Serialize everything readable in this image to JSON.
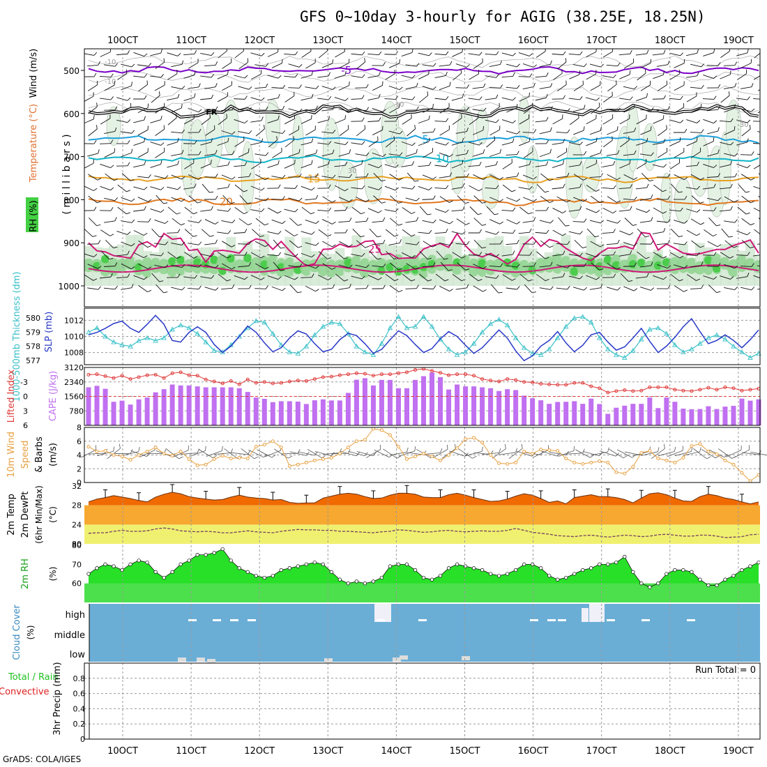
{
  "title": "GFS 0~10day 3-hourly for AGIG (38.25E, 18.25N)",
  "footer": "GrADS: COLA/IGES",
  "x_axis": {
    "labels": [
      "10OCT",
      "11OCT",
      "12OCT",
      "13OCT",
      "14OCT",
      "15OCT",
      "16OCT",
      "17OCT",
      "18OCT",
      "19OCT"
    ],
    "n_steps": 81
  },
  "colors": {
    "purple": "#7a00c8",
    "cyan": "#1ea0dc",
    "teal": "#10b4c8",
    "orange": "#e8a020",
    "dark_orange": "#e07820",
    "magenta": "#d01878",
    "slp": "#2838c8",
    "thick": "#38c0c8",
    "lifted": "#e03838",
    "cape": "#c070f0",
    "wind10": "#e8a040",
    "temp": "#f06a00",
    "temp_band": "#f6a830",
    "dew_band": "#f0f070",
    "rh": "#28e028",
    "rh_dark": "#18a018",
    "cloud_bg": "#6aaed6"
  },
  "chart_data": [
    {
      "type": "contour",
      "panel": "upper_air",
      "ylabel_parts": [
        "RH (%)",
        "Temperature (°C)",
        "Wind (m/s)"
      ],
      "ylabel_units": "( m i l l i b a r s )",
      "y_ticks": [
        500,
        600,
        700,
        800,
        900,
        1000
      ],
      "ylim": [
        1000,
        450
      ],
      "isotherms": [
        {
          "name": "-5",
          "level": 500,
          "label": "-5"
        },
        {
          "name": "0",
          "level": 595,
          "label": "FR"
        },
        {
          "name": "5",
          "level": 660,
          "label": "5"
        },
        {
          "name": "10",
          "level": 705,
          "label": "10"
        },
        {
          "name": "15",
          "level": 752,
          "label": "15"
        },
        {
          "name": "20",
          "level": 805,
          "label": "20"
        },
        {
          "name": "25",
          "level": 915,
          "label": "25"
        }
      ],
      "contour_labels": [
        "-10",
        "-10",
        "10",
        "30",
        "30"
      ]
    },
    {
      "type": "line",
      "panel": "slp_thickness",
      "ylabel_left": "1000-500mb Thickness (dm)",
      "ylabel_right": "SLP (mb)",
      "left_ticks": [
        577,
        578,
        579,
        580
      ],
      "right_ticks": [
        1008,
        1010,
        1012
      ],
      "series": [
        {
          "name": "SLP",
          "axis": "right",
          "ylim": [
            1006.5,
            1013.5
          ],
          "values": [
            1010.2,
            1010.5,
            1011,
            1011.6,
            1011.9,
            1011,
            1010.5,
            1011.5,
            1012.6,
            1011.5,
            1009.5,
            1009.3,
            1010.5,
            1011.2,
            1010.5,
            1009,
            1008,
            1008.8,
            1010,
            1011.3,
            1010.5,
            1009.2,
            1008.1,
            1008.6,
            1009.8,
            1010.7,
            1010.3,
            1009.1,
            1008.1,
            1008.4,
            1009.6,
            1010.4,
            1010.1,
            1009.1,
            1007.9,
            1008.4,
            1009.6,
            1010.7,
            1010.1,
            1009,
            1008,
            1008.5,
            1009.7,
            1010.6,
            1010,
            1008.9,
            1007.9,
            1008.6,
            1009.7,
            1010.8,
            1009.8,
            1008.2,
            1007,
            1007.6,
            1008.8,
            1009.5,
            1010.6,
            1009.2,
            1008.1,
            1008.9,
            1010.2,
            1010.5,
            1009.3,
            1008.3,
            1008.7,
            1009.8,
            1011,
            1009.4,
            1008,
            1008.8,
            1009.9,
            1011.2,
            1012.2,
            1010.6,
            1009.1,
            1009.5,
            1010.2,
            1009.5,
            1008.6,
            1009.6,
            1010.8
          ]
        },
        {
          "name": "Thickness",
          "axis": "left",
          "ylim": [
            576.7,
            580.7
          ],
          "values": [
            579,
            579.3,
            578.7,
            578.3,
            578.1,
            578,
            578.4,
            578.6,
            578.4,
            578.6,
            579.2,
            579.5,
            579.3,
            578.9,
            578.3,
            577.7,
            577.6,
            578.1,
            578.7,
            579.3,
            579.8,
            579.7,
            578.9,
            578.1,
            577.6,
            577.5,
            578,
            578.8,
            579.4,
            579.7,
            579.6,
            578.9,
            578,
            577.6,
            577.4,
            578.2,
            579.3,
            580.1,
            579.3,
            579.4,
            580.1,
            579.4,
            578.5,
            577.8,
            577.4,
            577.6,
            578.2,
            579,
            579.6,
            579.9,
            579.5,
            578.6,
            577.9,
            577.5,
            577.4,
            577.8,
            578.6,
            579.4,
            580,
            580.1,
            579.7,
            578.6,
            577.8,
            577.4,
            577.2,
            577.7,
            578.5,
            579.2,
            579.3,
            578.9,
            578.1,
            577.6,
            577.8,
            578.2,
            578.6,
            578.8,
            578.5,
            578,
            577.6,
            577.2,
            577.5
          ]
        }
      ]
    },
    {
      "type": "bar_line",
      "panel": "cape_li",
      "ylabel_left": "Lifted Index",
      "ylabel_right": "CAPE (J/kg)",
      "left_ticks": [
        -3,
        0,
        3,
        6
      ],
      "right_ticks": [
        780,
        1560,
        2340,
        3120
      ],
      "series": [
        {
          "name": "CAPE",
          "type": "bar",
          "ylim": [
            0,
            3120
          ],
          "values": [
            2050,
            2130,
            1970,
            1270,
            1330,
            1120,
            1400,
            1500,
            1780,
            1950,
            2200,
            2150,
            2150,
            2100,
            2050,
            2050,
            2050,
            2050,
            2000,
            1800,
            1500,
            1430,
            1250,
            1300,
            1300,
            1280,
            1150,
            1350,
            1400,
            1340,
            1340,
            1750,
            2460,
            2540,
            2150,
            2450,
            2450,
            2000,
            2000,
            2450,
            2650,
            2850,
            2600,
            1930,
            2200,
            2100,
            2100,
            2050,
            2000,
            1850,
            1950,
            1900,
            1600,
            1460,
            1350,
            1160,
            1260,
            1270,
            1300,
            1160,
            1440,
            1150,
            620,
            950,
            1060,
            1160,
            1160,
            1500,
            930,
            1500,
            1270,
            900,
            870,
            880,
            1030,
            880,
            1010,
            1050,
            1440,
            1330,
            1400
          ]
        },
        {
          "name": "Lifted Index",
          "type": "line",
          "ylim": [
            6,
            -6
          ],
          "values": [
            -4.5,
            -4.6,
            -4.2,
            -3.8,
            -4.3,
            -3.6,
            -4,
            -4.4,
            -4.5,
            -3.8,
            -4.8,
            -5,
            -4.4,
            -4.3,
            -3.5,
            -3.1,
            -2.7,
            -3.2,
            -2.5,
            -3.5,
            -2.8,
            -3,
            -2.7,
            -2.8,
            -3.1,
            -3.3,
            -3.2,
            -3.6,
            -4,
            -4.1,
            -4.4,
            -4.6,
            -4.8,
            -4.7,
            -4.3,
            -4.6,
            -4.6,
            -4.8,
            -5,
            -5.5,
            -5.7,
            -5.3,
            -4.9,
            -4.4,
            -4.6,
            -4.6,
            -4.3,
            -3.6,
            -3.3,
            -3.1,
            -3.6,
            -3.4,
            -3,
            -2.9,
            -2.6,
            -2.5,
            -2.4,
            -2.4,
            -2.8,
            -2.8,
            -2.1,
            -1.7,
            -0.8,
            -1.1,
            -1.3,
            -1.1,
            -1.2,
            -1.9,
            -1.9,
            -1.9,
            -1.4,
            -1.2,
            -1.1,
            -1.4,
            -1.8,
            -1.4,
            -1.9,
            -1.7,
            -1.2,
            -1.4,
            -1.6
          ]
        }
      ]
    },
    {
      "type": "line",
      "panel": "wind10m",
      "ylabel": "10m Wind Speed & Barbs (m/s)",
      "ylabel_parts": [
        "10m Wind",
        "Speed",
        "& Barbs",
        "(m/s)"
      ],
      "y_ticks": [
        0,
        2,
        4,
        6,
        8
      ],
      "ylim": [
        0,
        8
      ],
      "values": [
        5.2,
        4.5,
        4.6,
        4,
        3.8,
        3.3,
        4,
        4.5,
        5.1,
        4.2,
        3.9,
        4.5,
        3.4,
        2.5,
        2.6,
        3.4,
        3.9,
        3.5,
        3.6,
        3.5,
        5.2,
        5.5,
        6,
        5.1,
        2.4,
        2.6,
        2.9,
        3.2,
        3.4,
        3.6,
        4.2,
        5.1,
        6,
        6.2,
        7.8,
        7.6,
        6.9,
        5.2,
        3.4,
        3.8,
        4.2,
        3.8,
        3.2,
        4,
        5,
        6.3,
        6.5,
        5.8,
        4,
        2.8,
        2.7,
        2.9,
        4.5,
        4.2,
        4.8,
        4.7,
        4.6,
        3.5,
        2.9,
        2.7,
        2.9,
        3.1,
        2.9,
        1.5,
        1.3,
        2.3,
        4.3,
        4.6,
        3.5,
        3.2,
        2.9,
        3.6,
        5.3,
        5.6,
        4.5,
        4.1,
        3.2,
        2.6,
        1.4,
        0.2,
        1.1
      ]
    },
    {
      "type": "area",
      "panel": "temp2m",
      "ylabel_parts": [
        "2m Temp",
        "2m DewPt",
        "(6hr Min/Max)"
      ],
      "ylabel_units": "(°C)",
      "y_ticks": [
        80,
        24,
        28,
        32
      ],
      "ylim": [
        20,
        32
      ],
      "series": [
        {
          "name": "2m Temp",
          "values": [
            28.7,
            29.3,
            29.6,
            30,
            29.7,
            29.4,
            29,
            28.7,
            29.7,
            30.3,
            30.7,
            30.4,
            29.8,
            29.5,
            29.3,
            29.1,
            29.2,
            29.7,
            30.1,
            29.7,
            29.5,
            29.4,
            29.1,
            29.2,
            28.6,
            28.4,
            28.5,
            28.5,
            29.5,
            29.9,
            30.3,
            30.5,
            30.3,
            29.8,
            29.4,
            29.5,
            30.1,
            30.5,
            30.5,
            30.3,
            29.7,
            29.6,
            29.6,
            30.2,
            30.5,
            30.1,
            29.6,
            29.2,
            28.8,
            28.9,
            29.3,
            29.9,
            30.4,
            30.1,
            29.4,
            28.6,
            28.9,
            28.3,
            29.6,
            29.9,
            30.2,
            29.8,
            29.8,
            29.6,
            29.2,
            28.5,
            29.5,
            30.4,
            30.6,
            30.2,
            29.5,
            28.9,
            28.8,
            29.8,
            30.3,
            30,
            29.5,
            29.2,
            28.7,
            28.3,
            28.7
          ]
        },
        {
          "name": "2m DewPt",
          "values": [
            22.2,
            22.3,
            22.3,
            22.6,
            22.8,
            22.6,
            22.6,
            22.7,
            23.1,
            23.3,
            23.1,
            22.7,
            22.6,
            22.5,
            22.6,
            22.5,
            22.3,
            22.3,
            22.5,
            22.7,
            22.5,
            22.4,
            22.3,
            22.6,
            22.8,
            23,
            22.9,
            22.9,
            22.8,
            22.8,
            22.6,
            22.6,
            22.5,
            22.4,
            22.3,
            22.5,
            22.6,
            22.9,
            22.8,
            22.6,
            22.4,
            22.5,
            22.7,
            22.8,
            22.6,
            22.5,
            22.6,
            22.7,
            22.6,
            22.6,
            22.8,
            23.2,
            22.8,
            22.4,
            22.2,
            22,
            21.7,
            21.6,
            21.5,
            21.7,
            21.8,
            21.6,
            21.4,
            21.6,
            21.8,
            21.7,
            21.5,
            21.6,
            21.9,
            22,
            21.8,
            21.6,
            21.6,
            21.8,
            21.8,
            21.6,
            21.3,
            21.4,
            21.5,
            21.9,
            22
          ]
        }
      ]
    },
    {
      "type": "area",
      "panel": "rh2m",
      "ylabel": "2m RH",
      "ylabel_units": "(%)",
      "y_ticks": [
        60,
        70,
        80
      ],
      "ylim": [
        50,
        80
      ],
      "values": [
        65,
        68,
        70,
        69,
        67,
        70,
        72,
        71,
        66,
        63,
        66,
        70,
        72,
        75,
        75,
        76,
        78,
        72,
        68,
        66,
        64,
        63,
        64,
        67,
        68,
        69,
        70,
        71,
        70,
        66,
        62,
        60,
        61,
        60,
        61,
        63,
        69,
        70,
        70,
        67,
        63,
        62,
        64,
        68,
        70,
        69,
        68,
        67,
        65,
        64,
        65,
        67,
        70,
        70,
        68,
        64,
        62,
        63,
        65,
        67,
        68,
        70,
        70,
        71,
        74,
        66,
        60,
        58,
        60,
        65,
        67,
        67,
        66,
        62,
        59,
        59,
        62,
        64,
        67,
        69,
        71
      ]
    },
    {
      "type": "bar",
      "panel": "cloud_cover",
      "ylabel": "Cloud Cover",
      "ylabel_units": "(%)",
      "y_labels": [
        "high",
        "middle",
        "low"
      ]
    },
    {
      "type": "bar",
      "panel": "precip",
      "ylabel_parts": [
        "Total / Rain",
        "Convective"
      ],
      "ylabel": "3hr Precip (mm)",
      "y_ticks": [
        0,
        0.2,
        0.4,
        0.6,
        0.8
      ],
      "ylim": [
        0,
        1
      ],
      "run_total": "Run Total = 0",
      "values": [
        0
      ]
    }
  ]
}
